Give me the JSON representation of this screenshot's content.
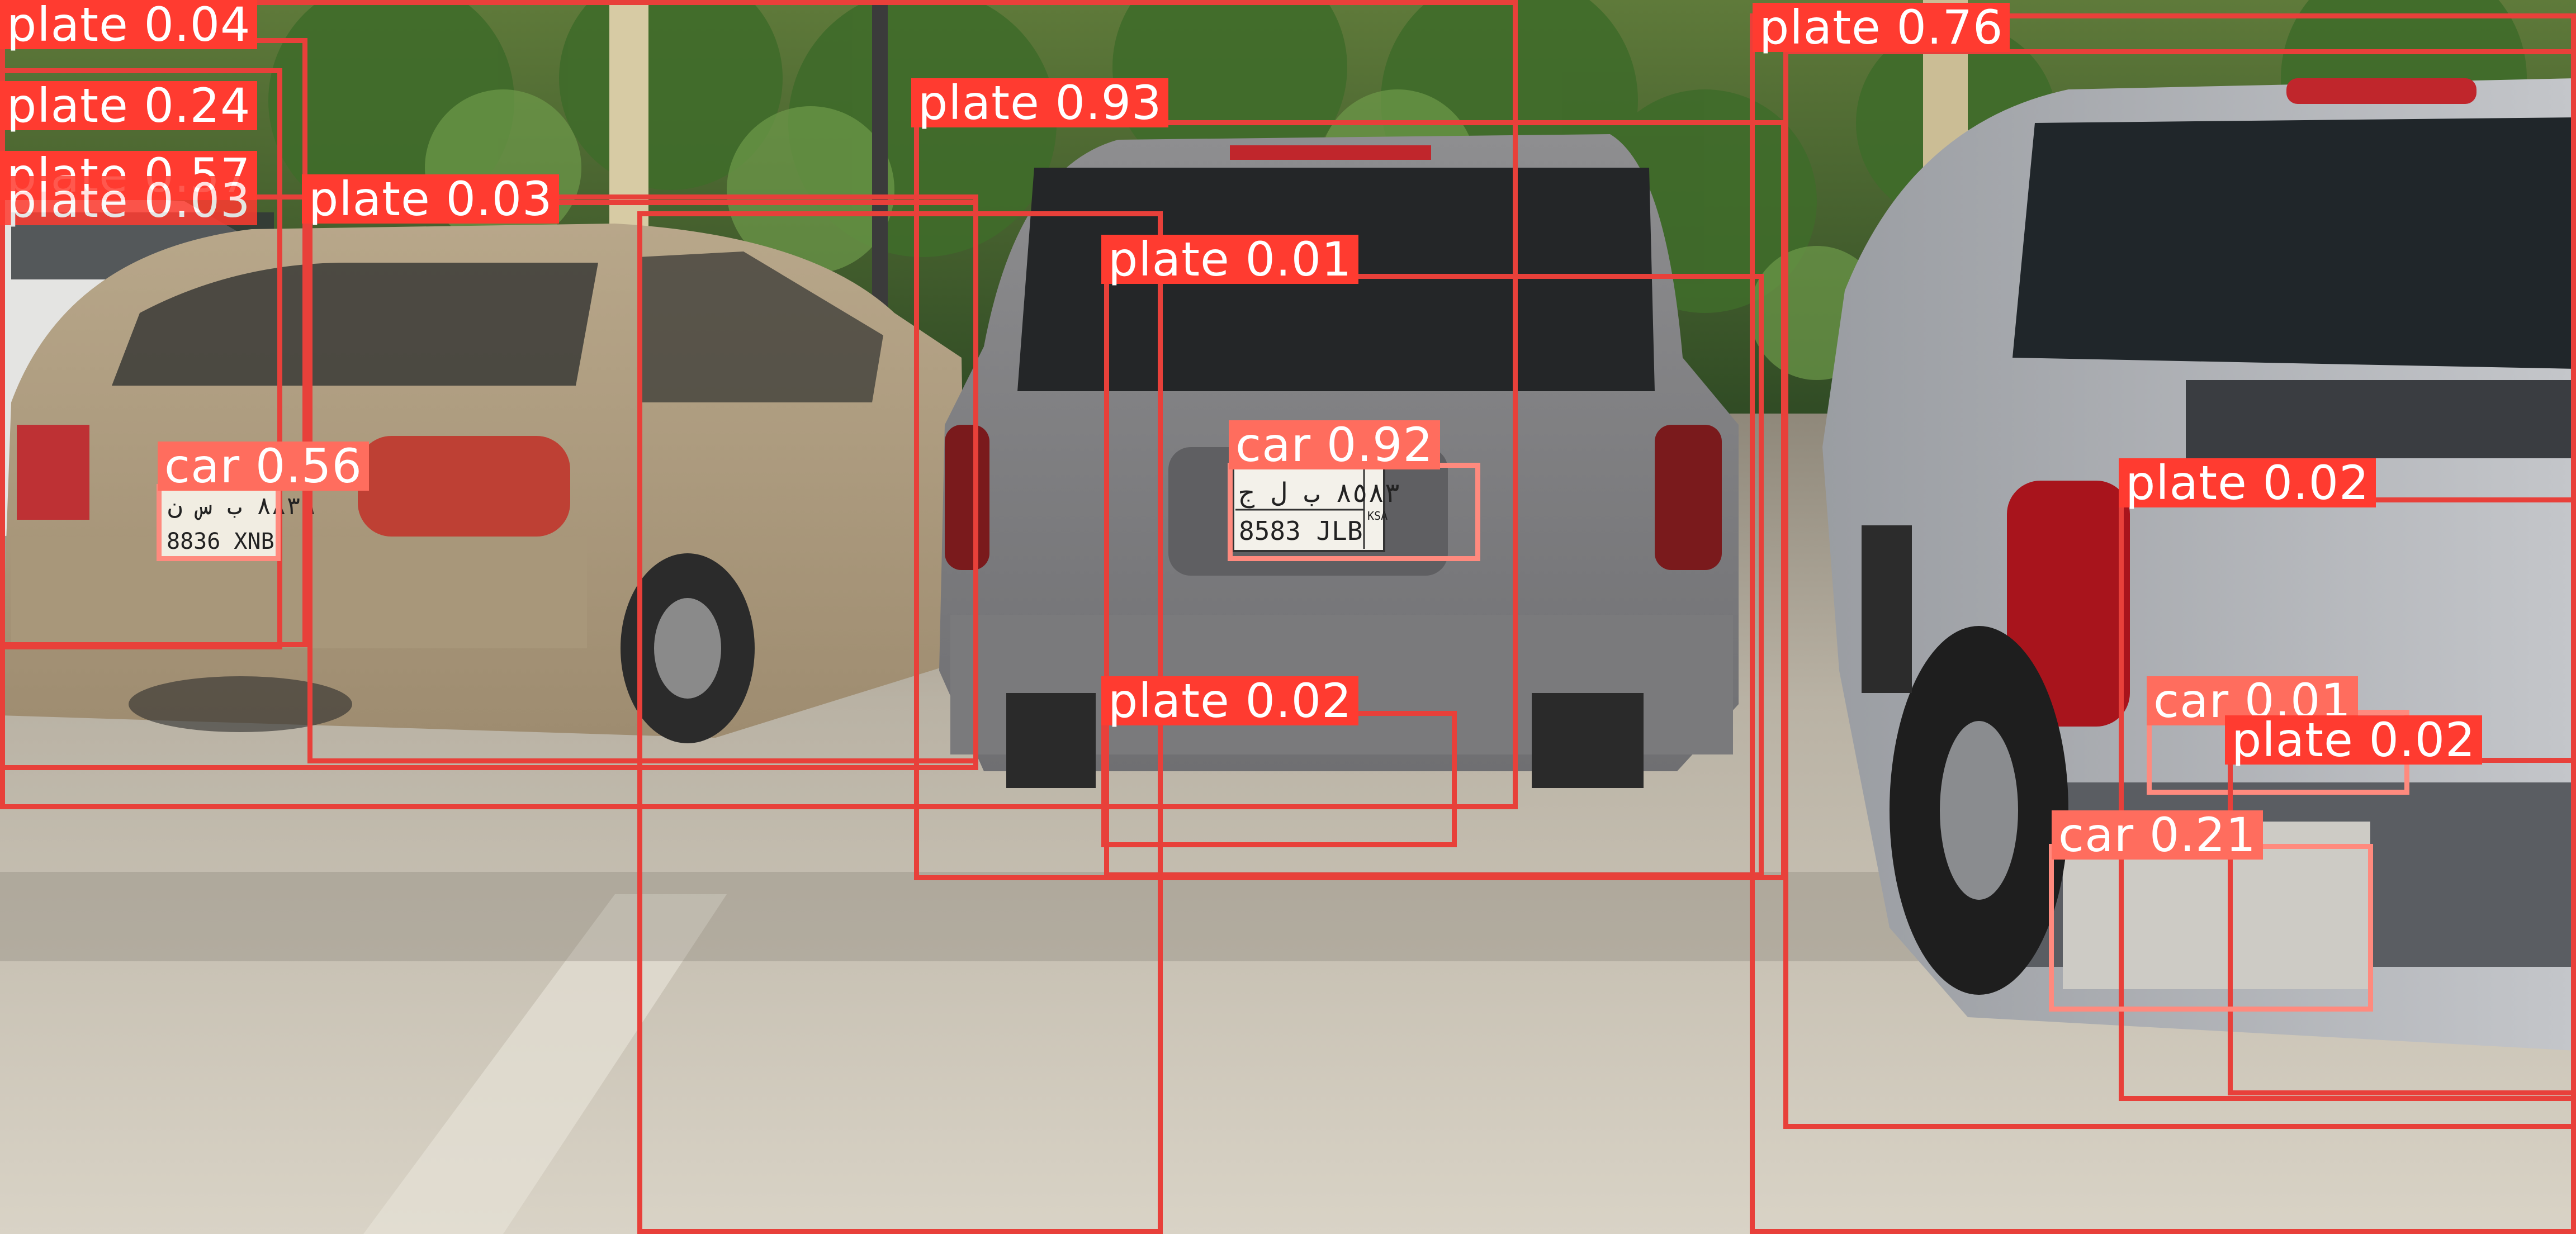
{
  "image": {
    "description_colors": {
      "plate_class": "#ff3b30",
      "car_class": "#ff6d5e",
      "box_stroke": "#e8403a",
      "label_text": "#ffffff"
    }
  },
  "plates_in_scene": {
    "left_car": {
      "arabic": "٨٨٣٦ ب س ن",
      "latin": "8836 XNB"
    },
    "center_car": {
      "arabic": "٨٥٨٣ ب ل ج",
      "latin": "8583 JLB",
      "side": "KSA"
    }
  },
  "detections": [
    {
      "label": "plate 0.04"
    },
    {
      "label": "plate 0.24"
    },
    {
      "label": "plate 0.57"
    },
    {
      "label": "plate 0.03"
    },
    {
      "label": "plate 0.03"
    },
    {
      "label": "plate 0.93"
    },
    {
      "label": "plate 0.76"
    },
    {
      "label": "plate 0.01"
    },
    {
      "label": "car 0.56"
    },
    {
      "label": "car 0.92"
    },
    {
      "label": "plate 0.02"
    },
    {
      "label": "plate 0.02"
    },
    {
      "label": "car 0.01"
    },
    {
      "label": "plate 0.02"
    },
    {
      "label": "car 0.21"
    }
  ]
}
